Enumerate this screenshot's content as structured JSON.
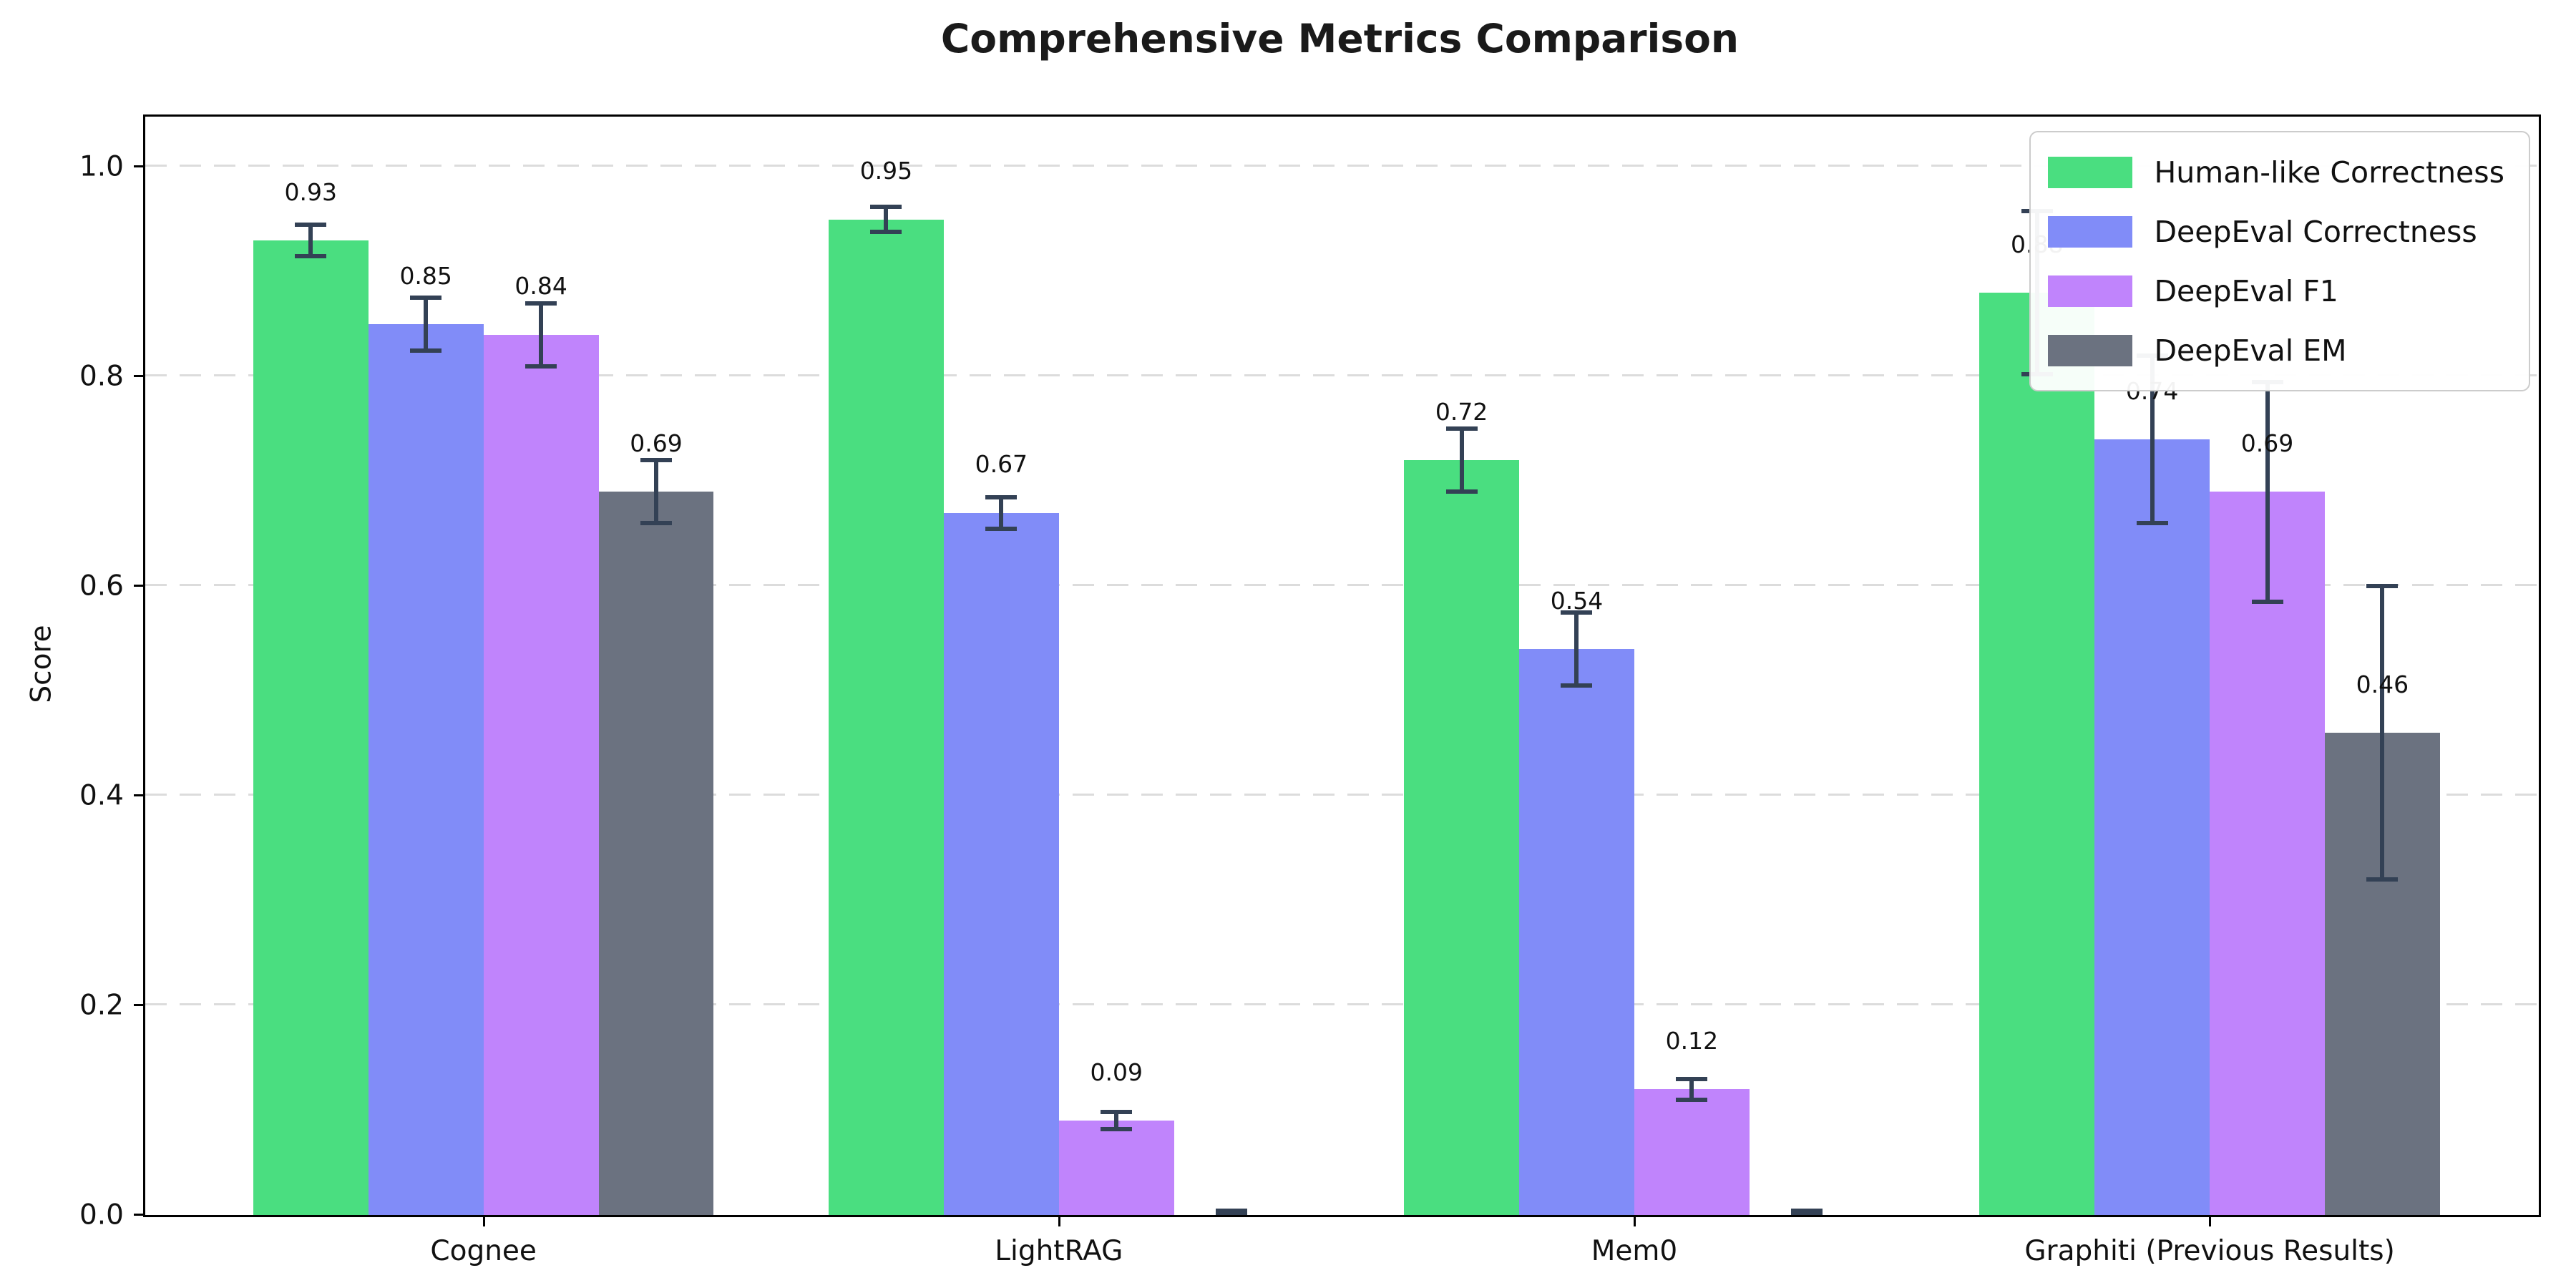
{
  "figure": {
    "title": "Comprehensive Metrics Comparison"
  },
  "chart_data": {
    "type": "bar",
    "title": "Comprehensive Metrics Comparison",
    "xlabel": "",
    "ylabel": "Score",
    "categories": [
      "Cognee",
      "LightRAG",
      "Mem0",
      "Graphiti (Previous Results)"
    ],
    "series": [
      {
        "name": "Human-like Correctness",
        "color": "#4ade80",
        "values": [
          0.93,
          0.95,
          0.72,
          0.88
        ],
        "errors": [
          0.015,
          0.012,
          0.03,
          0.078
        ],
        "labels": [
          "0.93",
          "0.95",
          "0.72",
          "0.88"
        ]
      },
      {
        "name": "DeepEval Correctness",
        "color": "#818cf8",
        "values": [
          0.85,
          0.67,
          0.54,
          0.74
        ],
        "errors": [
          0.025,
          0.015,
          0.035,
          0.08
        ],
        "labels": [
          "0.85",
          "0.67",
          "0.54",
          "0.74"
        ]
      },
      {
        "name": "DeepEval F1",
        "color": "#c084fc",
        "values": [
          0.84,
          0.09,
          0.12,
          0.69
        ],
        "errors": [
          0.03,
          0.008,
          0.01,
          0.105
        ],
        "labels": [
          "0.84",
          "0.09",
          "0.12",
          "0.69"
        ]
      },
      {
        "name": "DeepEval EM",
        "color": "#6b7280",
        "values": [
          0.69,
          0.0,
          0.0,
          0.46
        ],
        "errors": [
          0.03,
          0.004,
          0.004,
          0.14
        ],
        "labels": [
          "0.69",
          "",
          "",
          "0.46"
        ]
      }
    ],
    "y_ticks": [
      "0.0",
      "0.2",
      "0.4",
      "0.6",
      "0.8",
      "1.0"
    ],
    "y_tick_values": [
      0.0,
      0.2,
      0.4,
      0.6,
      0.8,
      1.0
    ],
    "ylim": [
      0,
      1.048
    ],
    "grid": "horizontal-dashed",
    "legend_position": "upper right",
    "error_bar_color": "#334155",
    "label_offset": 0.033
  }
}
